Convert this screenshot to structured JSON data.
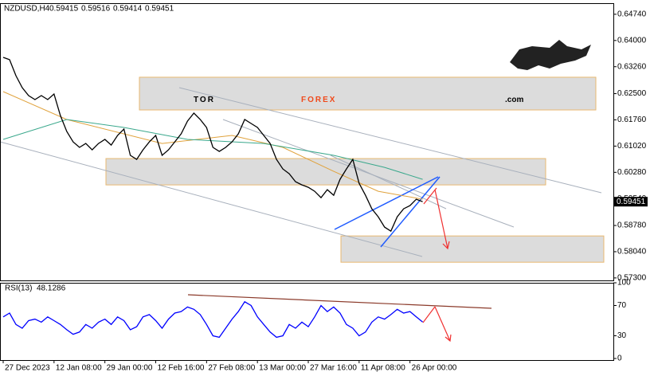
{
  "logo": [
    "TOR",
    "FOREX",
    ".com"
  ],
  "chart_data": [
    {
      "type": "line",
      "title": "NZDUSD,H4",
      "header_values": [
        0.59415,
        0.59516,
        0.59414,
        0.59451
      ],
      "xlim": [
        0,
        96
      ],
      "xticks": [
        {
          "value": 0,
          "label": "27 Dec 2023"
        },
        {
          "value": 8,
          "label": "12 Jan 08:00"
        },
        {
          "value": 16,
          "label": "29 Jan 00:00"
        },
        {
          "value": 24,
          "label": "12 Feb 16:00"
        },
        {
          "value": 32,
          "label": "27 Feb 08:00"
        },
        {
          "value": 40,
          "label": "13 Mar 00:00"
        },
        {
          "value": 48,
          "label": "27 Mar 16:00"
        },
        {
          "value": 56,
          "label": "11 Apr 08:00"
        },
        {
          "value": 64,
          "label": "26 Apr 00:00"
        }
      ],
      "ylim": [
        0.5723,
        0.6503
      ],
      "yticks": [
        {
          "value": 0.6474,
          "label": "0.64740"
        },
        {
          "value": 0.64,
          "label": "0.64000"
        },
        {
          "value": 0.6326,
          "label": "0.63260"
        },
        {
          "value": 0.625,
          "label": "0.62500"
        },
        {
          "value": 0.6176,
          "label": "0.61760"
        },
        {
          "value": 0.6102,
          "label": "0.61020"
        },
        {
          "value": 0.6028,
          "label": "0.60280"
        },
        {
          "value": 0.5954,
          "label": "0.59540"
        },
        {
          "value": 0.5878,
          "label": "0.58780"
        },
        {
          "value": 0.5804,
          "label": "0.58040"
        },
        {
          "value": 0.573,
          "label": "0.57300"
        }
      ],
      "series": [
        {
          "color": "#000000",
          "values": [
            0.63525,
            0.63458,
            0.63008,
            0.6267,
            0.62445,
            0.62333,
            0.62445,
            0.62333,
            0.6249,
            0.61883,
            0.61433,
            0.6114,
            0.60983,
            0.61095,
            0.60915,
            0.61095,
            0.61208,
            0.6105,
            0.6132,
            0.615,
            0.60758,
            0.60645,
            0.60915,
            0.6114,
            0.6132,
            0.60758,
            0.60915,
            0.6114,
            0.61365,
            0.61725,
            0.6195,
            0.6177,
            0.61545,
            0.60983,
            0.6087,
            0.60983,
            0.6114,
            0.61365,
            0.6177,
            0.61658,
            0.61545,
            0.6132,
            0.61095,
            0.60645,
            0.60375,
            0.6024,
            0.60015,
            0.59925,
            0.59858,
            0.59745,
            0.59565,
            0.5979,
            0.59633,
            0.60083,
            0.60375,
            0.60645,
            0.5997,
            0.59633,
            0.5925,
            0.59025,
            0.58733,
            0.5862,
            0.59025,
            0.5925,
            0.5934,
            0.5952,
            0.59451
          ]
        }
      ],
      "overlays": [
        {
          "color": "#e0a23c",
          "x": [
            0,
            10,
            25,
            36,
            44,
            52,
            59,
            66
          ],
          "values": [
            0.62558,
            0.6177,
            0.61095,
            0.6132,
            0.60983,
            0.60308,
            0.59745,
            0.5952
          ]
        },
        {
          "color": "#3aa88c",
          "x": [
            0,
            10,
            19,
            29,
            41,
            52,
            60,
            66
          ],
          "values": [
            0.61208,
            0.6177,
            0.61545,
            0.61208,
            0.61095,
            0.60758,
            0.6042,
            0.60083
          ]
        }
      ],
      "zones": [
        [
          0.6204,
          0.62963
        ],
        [
          0.59925,
          0.60668
        ],
        [
          0.57743,
          0.58485
        ]
      ],
      "current_price": 0.59451,
      "grid": false
    },
    {
      "type": "line",
      "title": "RSI(13)",
      "xlim": [
        0,
        96
      ],
      "ylim": [
        0,
        100
      ],
      "yticks": [
        100,
        70,
        30,
        0
      ],
      "series": [
        {
          "color": "#0000ff",
          "values": [
            55,
            60,
            45,
            40,
            50,
            52,
            48,
            55,
            50,
            45,
            38,
            32,
            35,
            45,
            40,
            48,
            52,
            45,
            55,
            50,
            38,
            42,
            55,
            58,
            50,
            40,
            52,
            60,
            62,
            68,
            65,
            58,
            45,
            30,
            28,
            40,
            52,
            62,
            75,
            70,
            55,
            45,
            35,
            28,
            30,
            45,
            40,
            48,
            42,
            55,
            70,
            62,
            68,
            60,
            45,
            40,
            30,
            35,
            48,
            55,
            52,
            58,
            65,
            60,
            62,
            55,
            48.1286
          ]
        }
      ],
      "grid": false
    }
  ]
}
